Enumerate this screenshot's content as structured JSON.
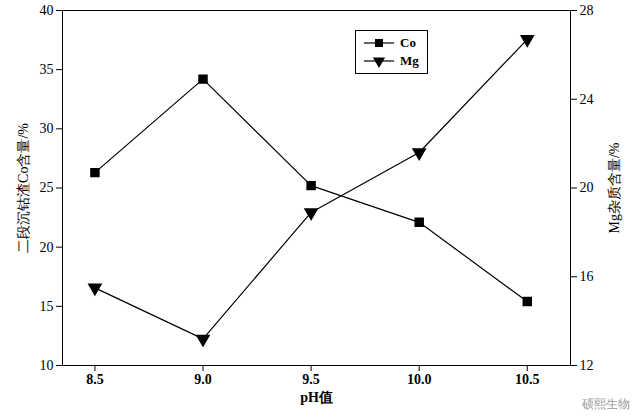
{
  "chart_data": {
    "type": "line",
    "x_label": "pH值",
    "y_label": "二段沉钴渣Co含量/%",
    "y2_label": "Mg杂质含量/%",
    "x": [
      8.5,
      9.0,
      9.5,
      10.0,
      10.5
    ],
    "xlim": [
      8.35,
      10.7
    ],
    "xticks": [
      8.5,
      {
        "value": 9,
        "label": "9.0"
      },
      9.5,
      {
        "value": 10,
        "label": "10.0"
      },
      10.5
    ],
    "ylim": [
      10,
      40
    ],
    "yticks": [
      10,
      15,
      20,
      25,
      30,
      35,
      40
    ],
    "y2lim": [
      12,
      28
    ],
    "y2ticks": [
      12,
      16,
      20,
      24,
      28
    ],
    "series": [
      {
        "name": "Co",
        "color": "#000000",
        "marker": "square",
        "line_style": "solid",
        "values": [
          26.3,
          34.2,
          25.2,
          22.1,
          15.4
        ]
      },
      {
        "name": "Mg",
        "color": "#000000",
        "marker": "triangle-down",
        "line_style": "solid",
        "axis": "y2",
        "values": [
          15.5,
          13.2,
          18.9,
          21.6,
          26.7
        ]
      }
    ],
    "legend": "top",
    "grid": false,
    "annotations": [
      "硕熙生物"
    ]
  }
}
